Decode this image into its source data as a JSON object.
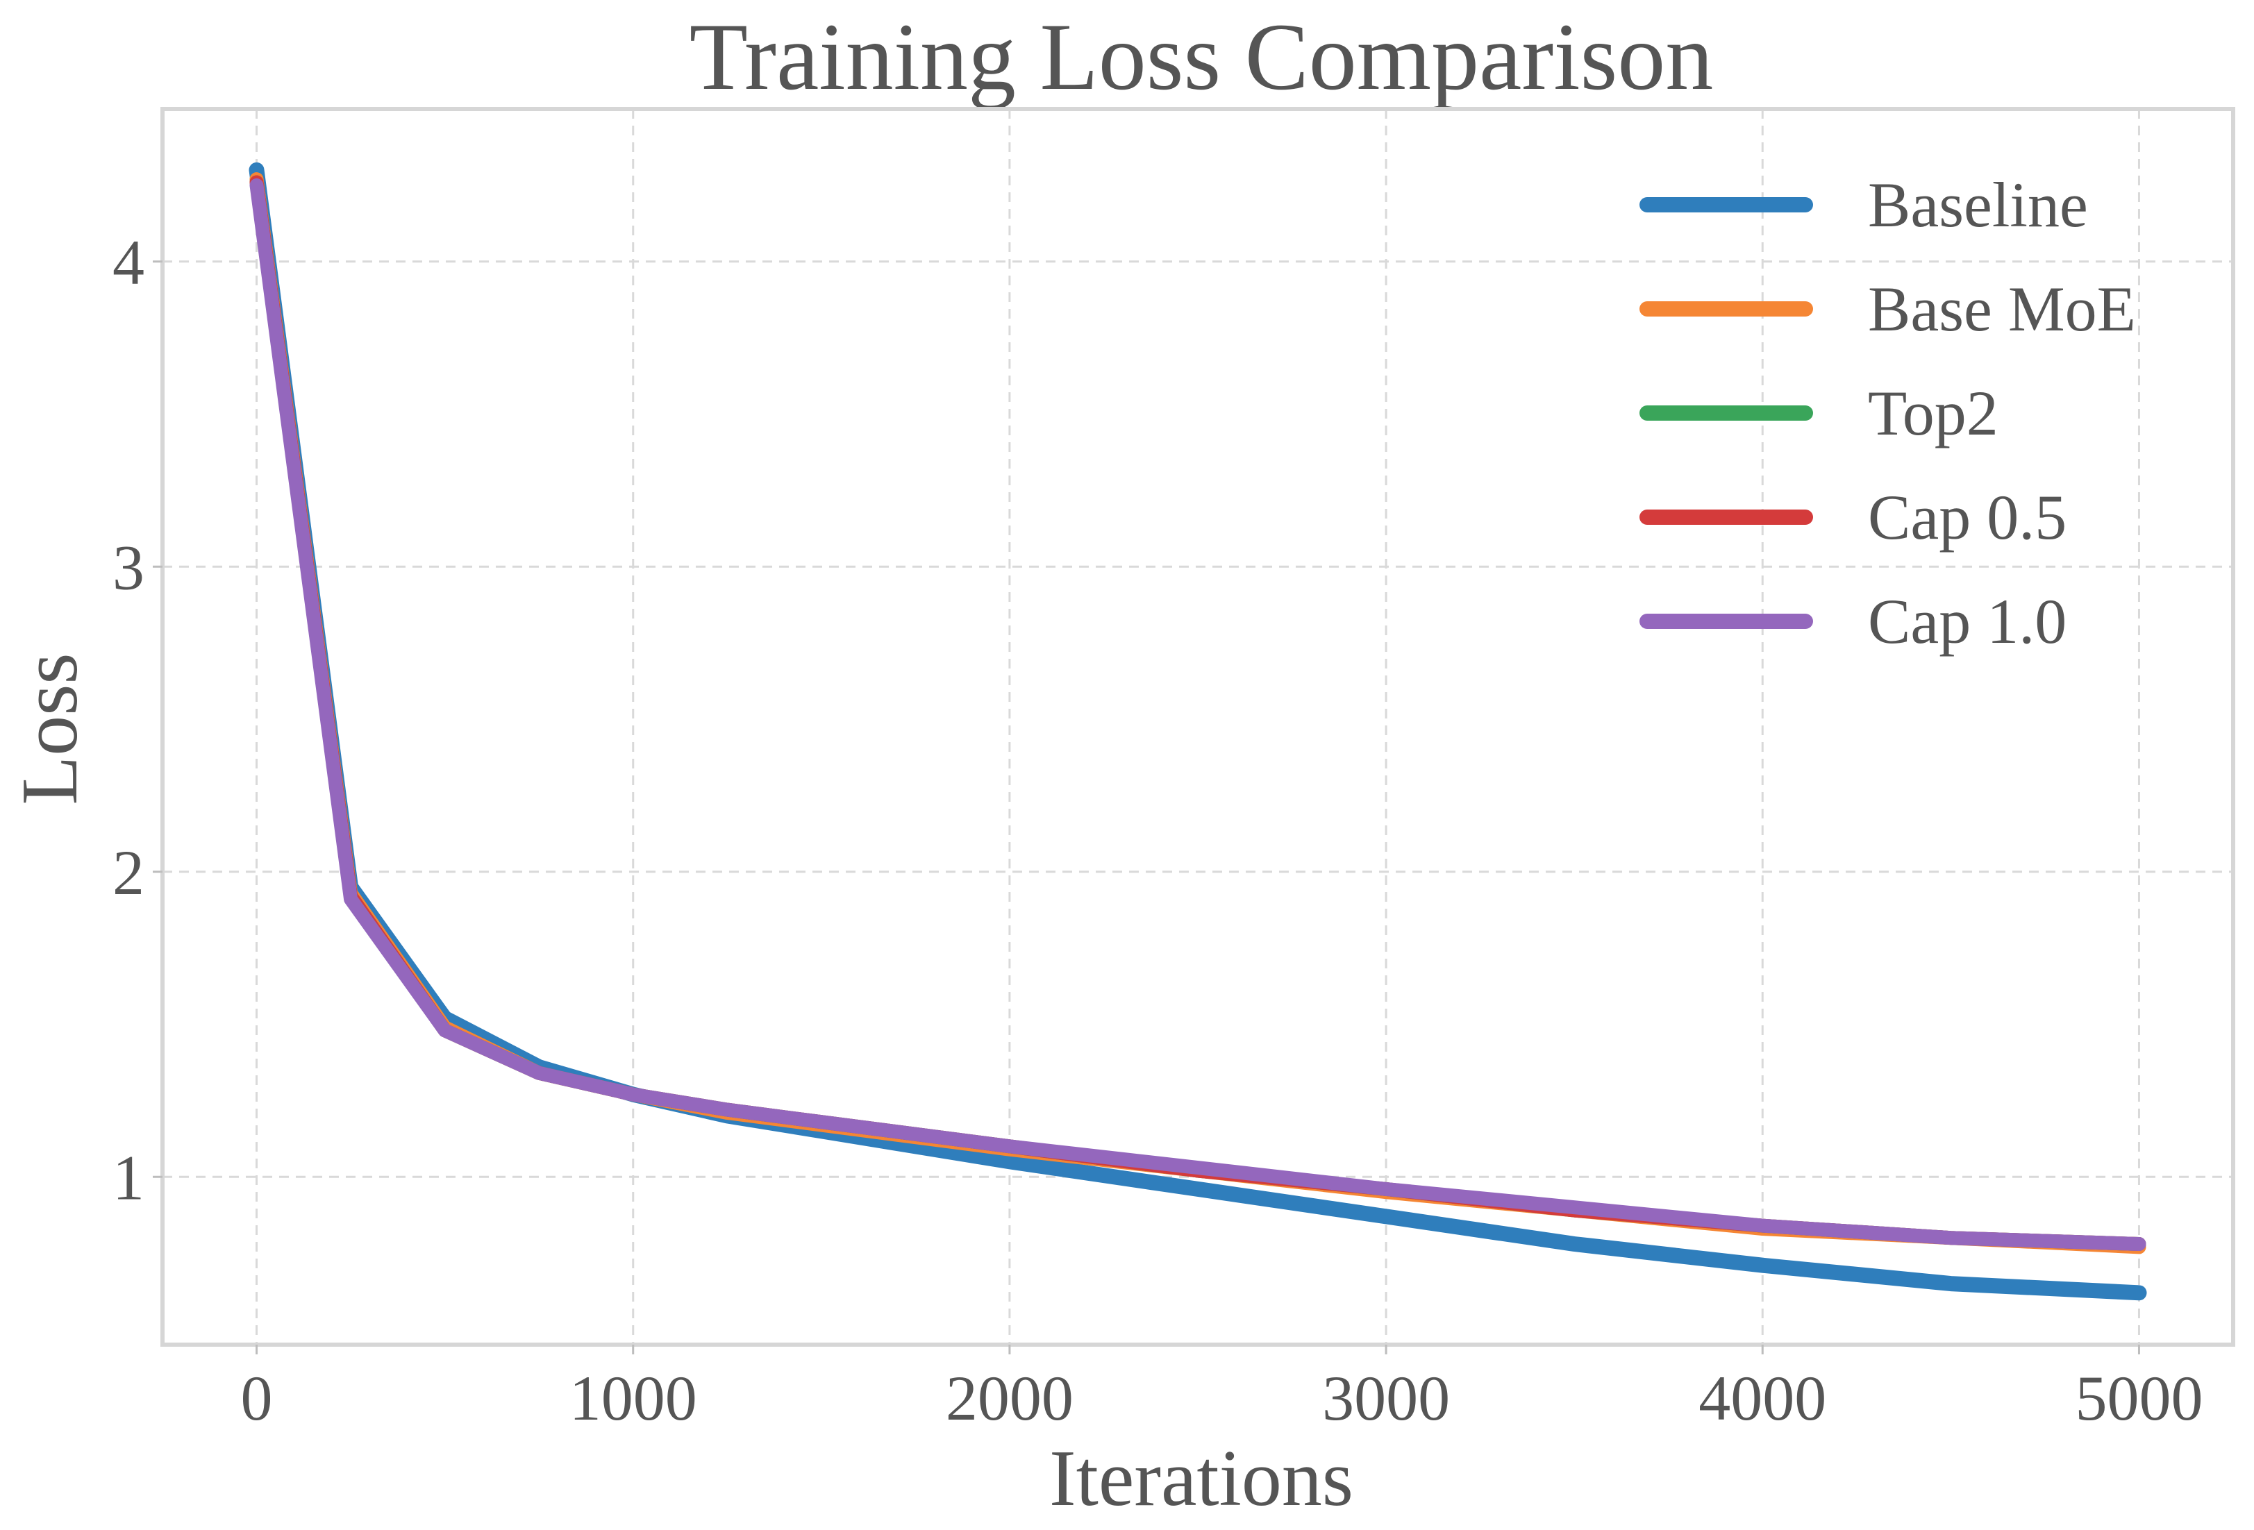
{
  "chart_data": {
    "type": "line",
    "title": "Training Loss Comparison",
    "xlabel": "Iterations",
    "ylabel": "Loss",
    "xlim": [
      -250,
      5250
    ],
    "ylim": [
      0.45,
      4.5
    ],
    "xticks": [
      0,
      1000,
      2000,
      3000,
      4000,
      5000
    ],
    "xtick_labels": [
      "0",
      "1000",
      "2000",
      "3000",
      "4000",
      "5000"
    ],
    "yticks": [
      1,
      2,
      3,
      4
    ],
    "ytick_labels": [
      "1",
      "2",
      "3",
      "4"
    ],
    "grid": true,
    "legend_position": "top-right",
    "x": [
      0,
      250,
      500,
      750,
      1000,
      1250,
      1500,
      2000,
      2500,
      3000,
      3500,
      4000,
      4500,
      5000
    ],
    "series": [
      {
        "name": "Baseline",
        "color": "#2f7ebc",
        "values": [
          4.3,
          1.95,
          1.52,
          1.36,
          1.27,
          1.2,
          1.15,
          1.05,
          0.96,
          0.87,
          0.78,
          0.71,
          0.65,
          0.62
        ]
      },
      {
        "name": "Base MoE",
        "color": "#f58634",
        "values": [
          4.27,
          1.93,
          1.49,
          1.34,
          1.27,
          1.21,
          1.17,
          1.09,
          1.02,
          0.95,
          0.89,
          0.83,
          0.8,
          0.77
        ]
      },
      {
        "name": "Top2",
        "color": "#3aa55a",
        "values": [
          4.26,
          1.92,
          1.48,
          1.34,
          1.27,
          1.22,
          1.18,
          1.1,
          1.02,
          0.96,
          0.89,
          0.84,
          0.8,
          0.78
        ]
      },
      {
        "name": "Cap 0.5",
        "color": "#d43b3b",
        "values": [
          4.26,
          1.92,
          1.48,
          1.34,
          1.27,
          1.22,
          1.18,
          1.1,
          1.02,
          0.96,
          0.89,
          0.84,
          0.8,
          0.78
        ]
      },
      {
        "name": "Cap 1.0",
        "color": "#9467bd",
        "values": [
          4.25,
          1.91,
          1.48,
          1.34,
          1.27,
          1.22,
          1.18,
          1.1,
          1.03,
          0.96,
          0.9,
          0.84,
          0.8,
          0.78
        ]
      }
    ]
  }
}
